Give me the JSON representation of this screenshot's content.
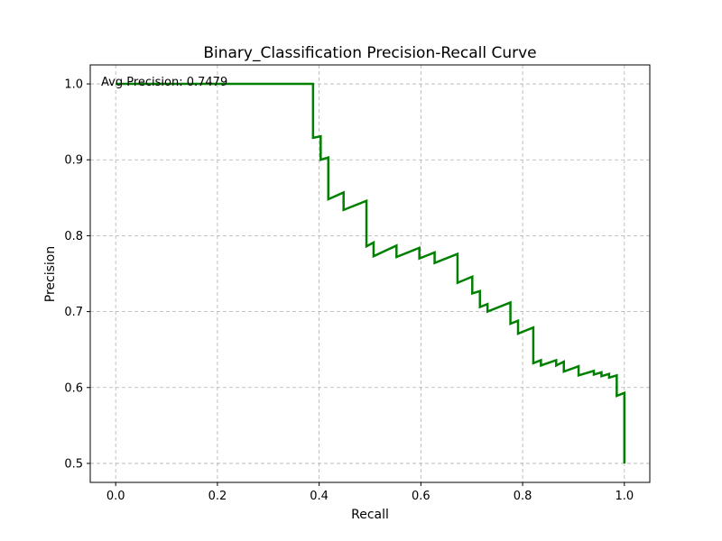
{
  "chart_data": {
    "type": "line",
    "title": "Binary_Classification Precision-Recall Curve",
    "xlabel": "Recall",
    "ylabel": "Precision",
    "xlim": [
      -0.05,
      1.05
    ],
    "ylim": [
      0.475,
      1.025
    ],
    "xticks": [
      0.0,
      0.2,
      0.4,
      0.6,
      0.8,
      1.0
    ],
    "xtick_labels": [
      "0.0",
      "0.2",
      "0.4",
      "0.6",
      "0.8",
      "1.0"
    ],
    "yticks": [
      0.5,
      0.6,
      0.7,
      0.8,
      0.9,
      1.0
    ],
    "ytick_labels": [
      "0.5",
      "0.6",
      "0.7",
      "0.8",
      "0.9",
      "1.0"
    ],
    "grid": true,
    "annotation": "Avg Precision: 0.7479",
    "series": [
      {
        "color": "#008000",
        "points": [
          [
            0.0,
            1.0
          ],
          [
            0.388,
            1.0
          ],
          [
            0.388,
            0.929
          ],
          [
            0.403,
            0.931
          ],
          [
            0.403,
            0.9
          ],
          [
            0.418,
            0.903
          ],
          [
            0.418,
            0.848
          ],
          [
            0.448,
            0.857
          ],
          [
            0.448,
            0.834
          ],
          [
            0.493,
            0.846
          ],
          [
            0.493,
            0.786
          ],
          [
            0.507,
            0.791
          ],
          [
            0.507,
            0.773
          ],
          [
            0.552,
            0.787
          ],
          [
            0.552,
            0.772
          ],
          [
            0.597,
            0.784
          ],
          [
            0.597,
            0.77
          ],
          [
            0.627,
            0.778
          ],
          [
            0.627,
            0.764
          ],
          [
            0.672,
            0.776
          ],
          [
            0.672,
            0.738
          ],
          [
            0.701,
            0.746
          ],
          [
            0.701,
            0.724
          ],
          [
            0.716,
            0.727
          ],
          [
            0.716,
            0.706
          ],
          [
            0.731,
            0.71
          ],
          [
            0.731,
            0.7
          ],
          [
            0.776,
            0.712
          ],
          [
            0.776,
            0.684
          ],
          [
            0.791,
            0.688
          ],
          [
            0.791,
            0.671
          ],
          [
            0.821,
            0.679
          ],
          [
            0.821,
            0.632
          ],
          [
            0.836,
            0.636
          ],
          [
            0.836,
            0.629
          ],
          [
            0.866,
            0.636
          ],
          [
            0.866,
            0.629
          ],
          [
            0.881,
            0.634
          ],
          [
            0.881,
            0.621
          ],
          [
            0.91,
            0.628
          ],
          [
            0.91,
            0.616
          ],
          [
            0.94,
            0.622
          ],
          [
            0.94,
            0.617
          ],
          [
            0.955,
            0.62
          ],
          [
            0.955,
            0.615
          ],
          [
            0.97,
            0.618
          ],
          [
            0.97,
            0.613
          ],
          [
            0.985,
            0.616
          ],
          [
            0.985,
            0.589
          ],
          [
            1.0,
            0.593
          ],
          [
            1.0,
            0.5
          ]
        ]
      }
    ]
  }
}
